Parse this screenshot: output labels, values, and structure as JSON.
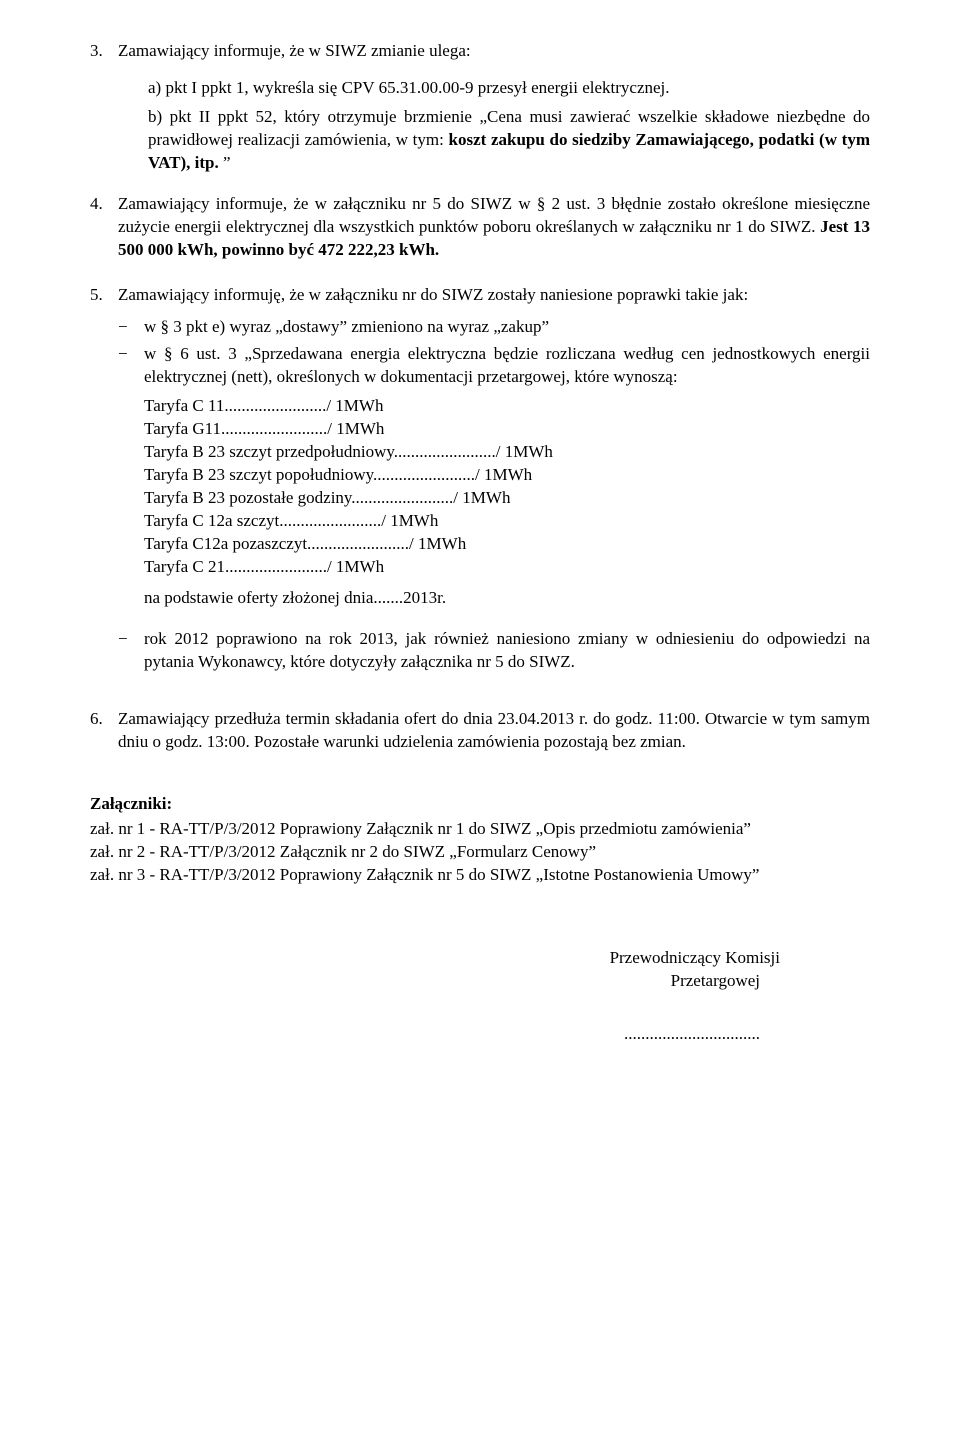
{
  "item3": {
    "num": "3.",
    "intro": "Zamawiający informuje, że w SIWZ zmianie ulega:",
    "a": "a) pkt I ppkt 1, wykreśla się CPV 65.31.00.00-9 przesył energii elektrycznej.",
    "b_prefix": "b) pkt II ppkt 52, który otrzymuje brzmienie „Cena musi zawierać wszelkie składowe niezbędne do prawidłowej realizacji zamówienia, w tym: ",
    "b_bold": "koszt zakupu do siedziby Zamawiającego, podatki (w tym VAT), itp.",
    "b_suffix": " ”"
  },
  "item4": {
    "num": "4.",
    "text_prefix": "Zamawiający informuje, że w załączniku nr 5 do SIWZ w § 2 ust. 3 błędnie zostało określone miesięczne zużycie energii elektrycznej dla wszystkich punktów poboru określanych w załączniku nr 1 do SIWZ. ",
    "text_bold": "Jest 13 500 000 kWh, powinno być 472 222,23 kWh."
  },
  "item5": {
    "num": "5.",
    "intro": "Zamawiający informuję, że w załączniku nr do SIWZ zostały naniesione poprawki takie jak:",
    "dash1": "w § 3 pkt e) wyraz „dostawy” zmieniono na wyraz „zakup”",
    "dash2": "w § 6 ust. 3 „Sprzedawana energia elektryczna będzie rozliczana według cen jednostkowych energii elektrycznej (nett), określonych w dokumentacji przetargowej, które wynoszą:",
    "tariffs": [
      "Taryfa C 11......................../ 1MWh",
      "Taryfa G11........................./ 1MWh",
      "Taryfa B 23  szczyt przedpołudniowy......................../ 1MWh",
      "Taryfa B 23 szczyt popołudniowy......................../ 1MWh",
      "Taryfa B 23 pozostałe godziny......................../ 1MWh",
      "Taryfa C 12a szczyt......................../ 1MWh",
      "Taryfa C12a pozaszczyt......................../ 1MWh",
      "Taryfa C 21......................../ 1MWh"
    ],
    "na_podstawie": "na podstawie oferty złożonej dnia.......2013r.",
    "dash3": "rok 2012 poprawiono na rok 2013, jak również naniesiono zmiany w odniesieniu do odpowiedzi na pytania Wykonawcy, które dotyczyły załącznika nr 5 do SIWZ."
  },
  "item6": {
    "num": "6.",
    "text": "Zamawiający przedłuża termin składania ofert do dnia 23.04.2013 r. do godz. 11:00. Otwarcie w tym samym dniu o godz. 13:00. Pozostałe warunki udzielenia zamówienia pozostają bez zmian."
  },
  "attachments": {
    "header": "Załączniki:",
    "lines": [
      "zał. nr 1 - RA-TT/P/3/2012 Poprawiony Załącznik nr 1 do SIWZ „Opis przedmiotu zamówienia”",
      "zał. nr 2 - RA-TT/P/3/2012 Załącznik nr 2 do SIWZ „Formularz Cenowy”",
      "zał. nr 3 - RA-TT/P/3/2012 Poprawiony Załącznik nr 5 do SIWZ „Istotne Postanowienia Umowy”"
    ]
  },
  "signature": {
    "line1": "Przewodniczący Komisji",
    "line2": "Przetargowej",
    "dots": "................................"
  }
}
